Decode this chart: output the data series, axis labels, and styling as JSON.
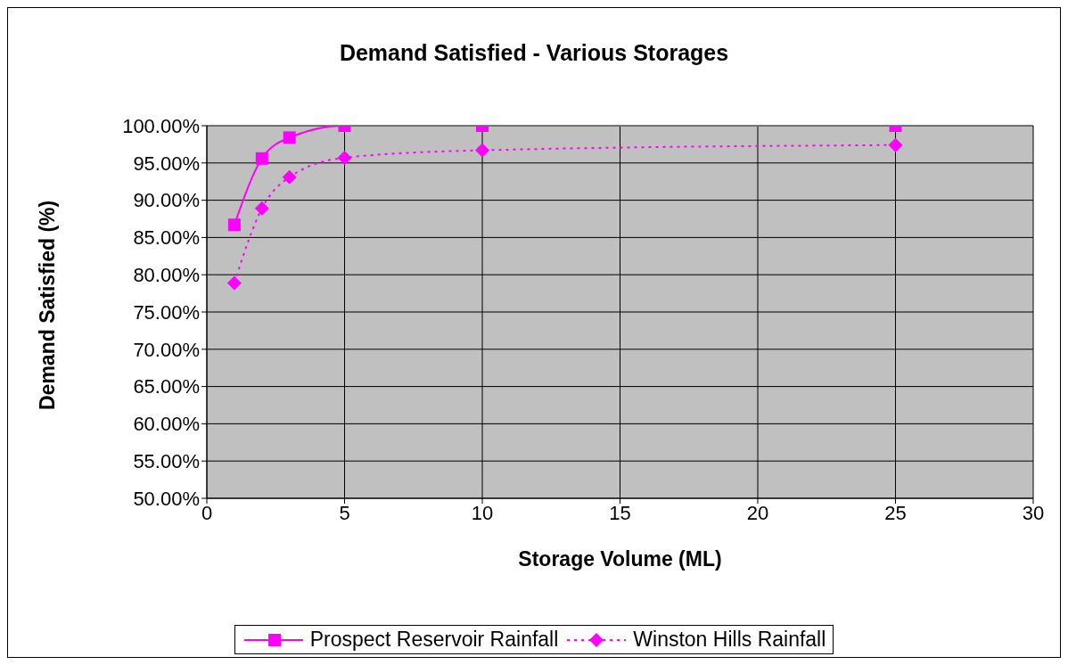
{
  "chart_data": {
    "type": "line",
    "title": "Demand Satisfied - Various Storages",
    "xlabel": "Storage Volume (ML)",
    "ylabel": "Demand Satisfied (%)",
    "x": [
      1,
      2,
      3,
      5,
      10,
      25
    ],
    "series": [
      {
        "name": "Prospect Reservoir Rainfall",
        "color": "#ff00ff",
        "marker": "square",
        "line_style": "solid",
        "values": [
          86.7,
          95.6,
          98.4,
          100,
          100,
          100
        ]
      },
      {
        "name": "Winston Hills Rainfall",
        "color": "#ff00ff",
        "marker": "diamond",
        "line_style": "dotted",
        "values": [
          78.9,
          88.9,
          93.1,
          95.7,
          96.7,
          97.4
        ]
      }
    ],
    "xlim": [
      0,
      30
    ],
    "xticks": [
      0,
      5,
      10,
      15,
      20,
      25,
      30
    ],
    "ylim": [
      50,
      100
    ],
    "yticks": [
      {
        "value": 50,
        "label": "50.00%"
      },
      {
        "value": 55,
        "label": "55.00%"
      },
      {
        "value": 60,
        "label": "60.00%"
      },
      {
        "value": 65,
        "label": "65.00%"
      },
      {
        "value": 70,
        "label": "70.00%"
      },
      {
        "value": 75,
        "label": "75.00%"
      },
      {
        "value": 80,
        "label": "80.00%"
      },
      {
        "value": 85,
        "label": "85.00%"
      },
      {
        "value": 90,
        "label": "90.00%"
      },
      {
        "value": 95,
        "label": "95.00%"
      },
      {
        "value": 100,
        "label": "100.00%"
      }
    ],
    "grid": true,
    "legend": "bottom"
  }
}
